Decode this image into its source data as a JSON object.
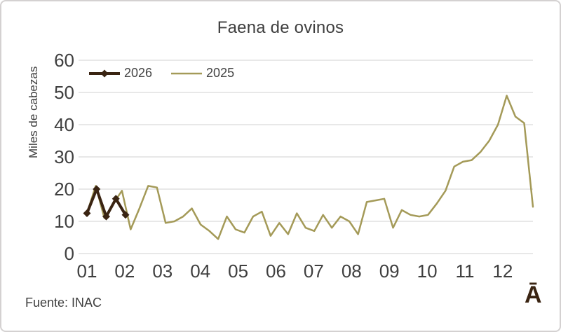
{
  "chart_data": {
    "type": "line",
    "title": "Faena de ovinos",
    "ylabel": "Miles de cabezas",
    "xlabel": "",
    "ylim": [
      0,
      60
    ],
    "yticks": [
      0,
      10,
      20,
      30,
      40,
      50,
      60
    ],
    "x_tick_labels": [
      "01",
      "02",
      "03",
      "04",
      "05",
      "06",
      "07",
      "08",
      "09",
      "10",
      "11",
      "12"
    ],
    "x_resolution": "weekly points across months 01-12",
    "grid": "horizontal",
    "grid_color": "#d9d9d9",
    "legend_position": "top-left",
    "series": [
      {
        "name": "2026",
        "color": "#3a2412",
        "marker": "diamond",
        "line_width": 4,
        "values": [
          12.5,
          20,
          11.5,
          17,
          12
        ]
      },
      {
        "name": "2025",
        "color": "#a49a58",
        "marker": "none",
        "line_width": 2.5,
        "values": [
          12.5,
          21,
          11,
          15.5,
          19.5,
          7.5,
          14,
          21,
          20.5,
          9.5,
          10,
          11.5,
          14,
          9,
          7,
          4.5,
          11.5,
          7.5,
          6.5,
          11.5,
          13,
          5.5,
          9.5,
          6,
          12.5,
          8,
          7,
          12,
          8,
          11.5,
          10,
          6,
          16,
          16.5,
          17,
          8,
          13.5,
          12,
          11.5,
          12,
          15.5,
          19.5,
          27,
          28.5,
          29,
          31.5,
          35,
          40,
          49,
          42.5,
          40.5,
          14.5
        ]
      }
    ]
  },
  "footer": {
    "source": "Fuente: INAC",
    "watermark": "Ā"
  }
}
